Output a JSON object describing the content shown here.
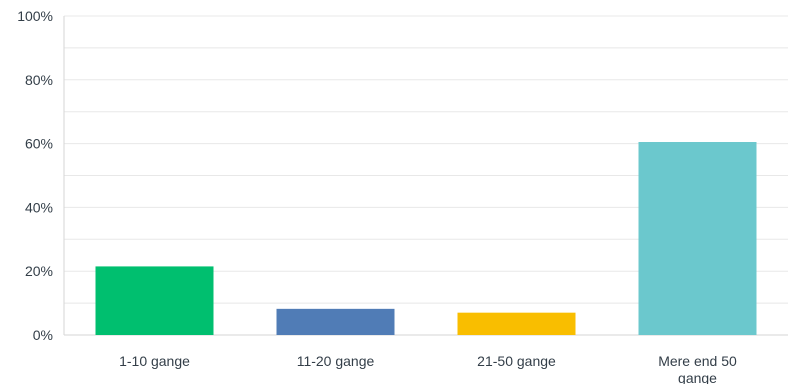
{
  "chart_data": {
    "type": "bar",
    "categories": [
      [
        "1-10 gange"
      ],
      [
        "11-20 gange"
      ],
      [
        "21-50 gange"
      ],
      [
        "Mere end 50",
        "gange"
      ]
    ],
    "values": [
      21.5,
      8.2,
      7.0,
      60.5
    ],
    "ylim": [
      0,
      100
    ],
    "y_ticks": [
      "0%",
      "20%",
      "40%",
      "60%",
      "80%",
      "100%"
    ],
    "grid": true,
    "bar_colors": [
      "#00bf6f",
      "#507cb6",
      "#f9be00",
      "#6bc8cd"
    ],
    "gridline_color": "#e8e8e8",
    "axis_color": "#d6d6d6",
    "label_color": "#333e48"
  }
}
